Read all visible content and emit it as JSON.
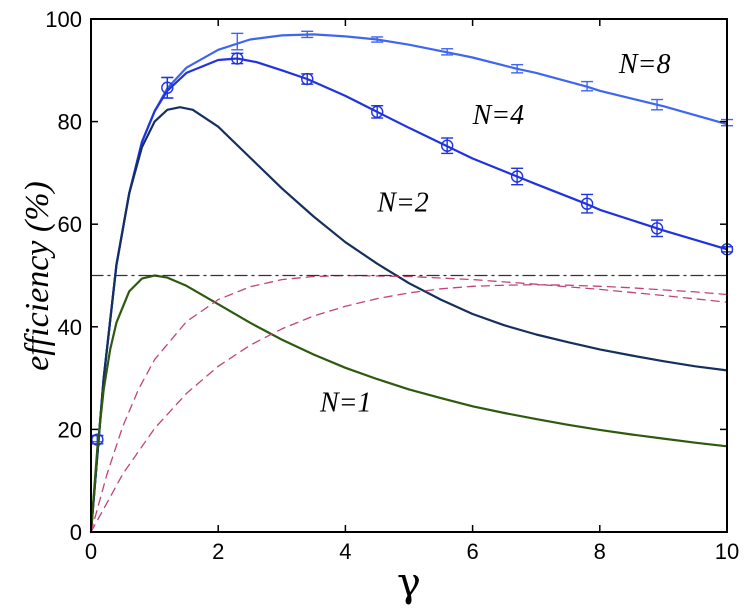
{
  "chart_data": {
    "type": "line",
    "title": "",
    "xlabel": "γ",
    "ylabel": "efficiency (%)",
    "xlim": [
      0,
      10
    ],
    "ylim": [
      0,
      100
    ],
    "xticks": [
      0,
      2,
      4,
      6,
      8,
      10
    ],
    "yticks": [
      0,
      20,
      40,
      60,
      80,
      100
    ],
    "grid": false,
    "legend": "none",
    "series": [
      {
        "name": "N=8",
        "style": "solid",
        "color": "#3f66f0",
        "x": [
          0,
          0.2,
          0.4,
          0.6,
          0.8,
          1.0,
          1.2,
          1.5,
          2.0,
          2.5,
          3.0,
          3.5,
          4.0,
          4.5,
          5.0,
          5.6,
          6.0,
          6.7,
          7.0,
          7.8,
          8.0,
          8.9,
          9.0,
          10.0
        ],
        "y": [
          0,
          30,
          52,
          66,
          76,
          82,
          86.5,
          90.5,
          94,
          96,
          96.8,
          97,
          96.6,
          96,
          95,
          93.5,
          92.5,
          90.3,
          89.5,
          86.8,
          86,
          83.3,
          83,
          79.5
        ],
        "markers": {
          "x": [
            0.1,
            1.2,
            2.3,
            3.4,
            4.5,
            5.6,
            6.7,
            7.8,
            8.9,
            10.0
          ],
          "y": [
            18.2,
            86.6,
            95.6,
            97.0,
            96.0,
            93.6,
            90.3,
            86.9,
            83.3,
            79.8
          ],
          "err": [
            0.6,
            2.0,
            1.6,
            0.6,
            0.5,
            0.6,
            0.8,
            0.9,
            1.0,
            0.6
          ],
          "symbol": "errorbar"
        }
      },
      {
        "name": "N=4",
        "style": "solid",
        "color": "#2033e0",
        "x": [
          0,
          0.2,
          0.4,
          0.6,
          0.8,
          1.0,
          1.2,
          1.5,
          2.0,
          2.3,
          2.6,
          3.0,
          3.4,
          4.0,
          4.5,
          5.0,
          5.6,
          6.0,
          6.7,
          7.0,
          7.8,
          8.0,
          8.9,
          9.0,
          10.0
        ],
        "y": [
          0,
          30,
          52,
          66,
          76,
          82,
          86,
          89.5,
          92,
          92.3,
          91.6,
          90,
          88.3,
          85,
          81.9,
          78.8,
          75.2,
          72.8,
          69.3,
          67.8,
          63.9,
          62.8,
          59.2,
          58.8,
          55.1
        ],
        "markers": {
          "x": [
            0.1,
            1.2,
            2.3,
            3.4,
            4.5,
            5.6,
            6.7,
            7.8,
            8.9,
            10.0
          ],
          "y": [
            18.0,
            86.6,
            92.3,
            88.3,
            81.9,
            75.3,
            69.3,
            64.0,
            59.2,
            55.1
          ],
          "err": [
            0.8,
            2.0,
            1.0,
            1.0,
            1.2,
            1.5,
            1.6,
            1.8,
            1.6,
            0.5
          ],
          "symbol": "circle-errorbar"
        }
      },
      {
        "name": "N=2",
        "style": "solid",
        "color": "#16305e",
        "x": [
          0,
          0.2,
          0.4,
          0.6,
          0.8,
          1.0,
          1.2,
          1.4,
          1.6,
          2.0,
          2.5,
          3.0,
          3.5,
          4.0,
          4.5,
          5.0,
          5.5,
          6.0,
          6.5,
          7.0,
          7.5,
          8.0,
          8.5,
          9.0,
          9.5,
          10.0
        ],
        "y": [
          0,
          30,
          52,
          66,
          75,
          80,
          82.3,
          82.8,
          82.3,
          79,
          73,
          67,
          61.5,
          56.5,
          52.3,
          48.5,
          45.3,
          42.5,
          40.3,
          38.5,
          37,
          35.6,
          34.4,
          33.3,
          32.3,
          31.5
        ]
      },
      {
        "name": "N=1",
        "style": "solid",
        "color": "#2e5a0f",
        "x": [
          0,
          0.1,
          0.2,
          0.3,
          0.4,
          0.6,
          0.8,
          1.0,
          1.2,
          1.5,
          2.0,
          2.5,
          3.0,
          3.5,
          4.0,
          4.5,
          5.0,
          5.5,
          6.0,
          6.5,
          7.0,
          7.5,
          8.0,
          8.5,
          9.0,
          9.5,
          10.0
        ],
        "y": [
          0,
          16.5,
          27.8,
          35.5,
          40.8,
          46.9,
          49.4,
          50,
          49.6,
          48,
          44.4,
          40.8,
          37.5,
          34.6,
          32,
          29.8,
          27.8,
          26.1,
          24.5,
          23.2,
          22,
          20.9,
          19.9,
          19,
          18.2,
          17.4,
          16.7
        ]
      },
      {
        "name": "",
        "style": "dashed",
        "color": "#c0447a",
        "x": [
          0,
          0.25,
          0.5,
          0.75,
          1.0,
          1.5,
          2.0,
          2.5,
          3.0,
          3.5,
          4.0,
          5.0,
          6.0,
          7.0,
          8.0,
          9.0,
          10.0
        ],
        "y": [
          0,
          11.2,
          20.6,
          27.9,
          33.6,
          41,
          45.3,
          47.8,
          49.2,
          49.8,
          50,
          49.8,
          49.2,
          48.3,
          47.3,
          46.1,
          44.8
        ]
      },
      {
        "name": "",
        "style": "dashed",
        "color": "#c0447a",
        "x": [
          0,
          0.5,
          1.0,
          1.5,
          2.0,
          2.5,
          3.0,
          3.5,
          4.0,
          4.5,
          5.0,
          5.5,
          6.0,
          6.5,
          7.0,
          7.5,
          8.0,
          8.5,
          9.0,
          9.5,
          10.0
        ],
        "y": [
          0,
          11.3,
          20.2,
          27,
          32.3,
          36.4,
          39.6,
          42.1,
          44,
          45.5,
          46.6,
          47.4,
          47.9,
          48.1,
          48.2,
          48.1,
          47.9,
          47.6,
          47.2,
          46.8,
          46.3
        ]
      },
      {
        "name": "",
        "style": "dashdot",
        "color": "#333333",
        "x": [
          0,
          10
        ],
        "y": [
          50,
          50
        ]
      }
    ],
    "annotations": [
      {
        "text": "N=8",
        "x": 8.3,
        "y": 89.5
      },
      {
        "text": "N=4",
        "x": 6.0,
        "y": 79.5
      },
      {
        "text": "N=2",
        "x": 4.5,
        "y": 62.5
      },
      {
        "text": "N=1",
        "x": 3.6,
        "y": 23.5
      }
    ]
  }
}
